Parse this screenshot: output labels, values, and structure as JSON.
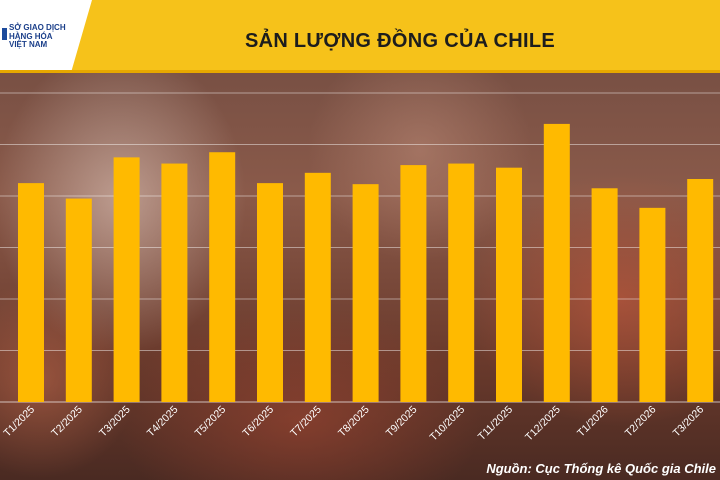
{
  "header": {
    "title": "SẢN LƯỢNG ĐỒNG CỦA CHILE",
    "logo_lines": [
      "SỞ GIAO DỊCH",
      "HÀNG HÓA",
      "VIỆT NAM"
    ]
  },
  "source": "Nguồn: Cục Thống kê Quốc gia Chile",
  "colors": {
    "bar": "#ffba00",
    "header": "#f6c21a"
  },
  "chart_data": {
    "type": "bar",
    "title": "SẢN LƯỢNG ĐỒNG CỦA CHILE",
    "xlabel": "",
    "ylabel": "",
    "grid": true,
    "categories": [
      "T1/2025",
      "T2/2025",
      "T3/2025",
      "T4/2025",
      "T5/2025",
      "T6/2025",
      "T7/2025",
      "T8/2025",
      "T9/2025",
      "T10/2025",
      "T11/2025",
      "T12/2025",
      "T1/2026",
      "T2/2026",
      "T3/2026"
    ],
    "values": [
      4.25,
      3.95,
      4.75,
      4.63,
      4.85,
      4.25,
      4.45,
      4.23,
      4.6,
      4.63,
      4.55,
      5.4,
      4.15,
      3.77,
      4.33
    ],
    "ylim": [
      0,
      6
    ]
  }
}
